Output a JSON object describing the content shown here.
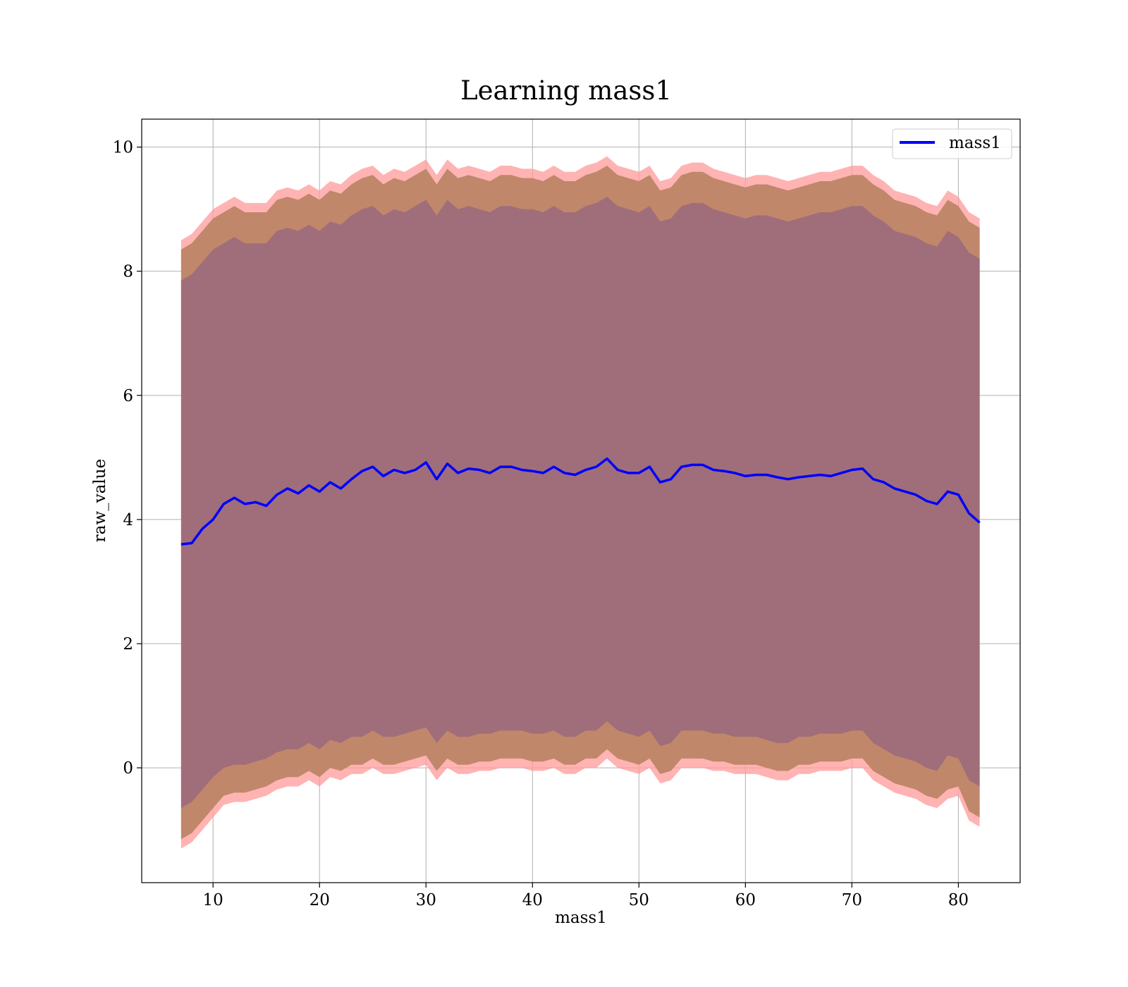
{
  "chart_data": {
    "type": "area",
    "title": "Learning mass1",
    "xlabel": "mass1",
    "ylabel": "raw_value",
    "xlim": [
      3.3,
      85.8
    ],
    "ylim": [
      -1.85,
      10.45
    ],
    "xticks": [
      10,
      20,
      30,
      40,
      50,
      60,
      70,
      80
    ],
    "yticks": [
      0,
      2,
      4,
      6,
      8,
      10
    ],
    "grid": true,
    "legend": {
      "position": "top-right",
      "entries": [
        "mass1"
      ]
    },
    "colors": {
      "line": "#0000ff",
      "band_outer": "#ff9999",
      "band_mid": "#c0876a",
      "band_inner": "#a06e7a",
      "grid": "#b0b0b0"
    },
    "x": [
      7.0,
      8.0,
      9.0,
      10.0,
      11.0,
      12.0,
      13.0,
      14.0,
      15.0,
      16.0,
      17.0,
      18.0,
      19.0,
      20.0,
      21.0,
      22.0,
      23.0,
      24.0,
      25.0,
      26.0,
      27.0,
      28.0,
      29.0,
      30.0,
      31.0,
      32.0,
      33.0,
      34.0,
      35.0,
      36.0,
      37.0,
      38.0,
      39.0,
      40.0,
      41.0,
      42.0,
      43.0,
      44.0,
      45.0,
      46.0,
      47.0,
      48.0,
      49.0,
      50.0,
      51.0,
      52.0,
      53.0,
      54.0,
      55.0,
      56.0,
      57.0,
      58.0,
      59.0,
      60.0,
      61.0,
      62.0,
      63.0,
      64.0,
      65.0,
      66.0,
      67.0,
      68.0,
      69.0,
      70.0,
      71.0,
      72.0,
      73.0,
      74.0,
      75.0,
      76.0,
      77.0,
      78.0,
      79.0,
      80.0,
      81.0,
      82.0
    ],
    "series": [
      {
        "name": "mass1",
        "values": [
          3.6,
          3.62,
          3.85,
          4.0,
          4.25,
          4.35,
          4.25,
          4.28,
          4.22,
          4.4,
          4.5,
          4.42,
          4.55,
          4.45,
          4.6,
          4.5,
          4.65,
          4.78,
          4.85,
          4.7,
          4.8,
          4.75,
          4.8,
          4.92,
          4.65,
          4.9,
          4.75,
          4.82,
          4.8,
          4.75,
          4.85,
          4.85,
          4.8,
          4.78,
          4.75,
          4.85,
          4.75,
          4.72,
          4.8,
          4.85,
          4.98,
          4.8,
          4.75,
          4.75,
          4.85,
          4.6,
          4.65,
          4.85,
          4.88,
          4.88,
          4.8,
          4.78,
          4.75,
          4.7,
          4.72,
          4.72,
          4.68,
          4.65,
          4.68,
          4.7,
          4.72,
          4.7,
          4.75,
          4.8,
          4.82,
          4.65,
          4.6,
          4.5,
          4.45,
          4.4,
          4.3,
          4.25,
          4.45,
          4.4,
          4.1,
          3.95
        ]
      }
    ],
    "bands": [
      {
        "lower": [
          -1.3,
          -1.2,
          -1.0,
          -0.8,
          -0.6,
          -0.55,
          -0.55,
          -0.5,
          -0.45,
          -0.35,
          -0.3,
          -0.3,
          -0.2,
          -0.3,
          -0.15,
          -0.2,
          -0.1,
          -0.1,
          0.0,
          -0.1,
          -0.1,
          -0.05,
          0.0,
          0.05,
          -0.2,
          0.0,
          -0.1,
          -0.1,
          -0.05,
          -0.05,
          0.0,
          0.0,
          0.0,
          -0.05,
          -0.05,
          0.0,
          -0.1,
          -0.1,
          0.0,
          0.0,
          0.15,
          0.0,
          -0.05,
          -0.1,
          0.0,
          -0.25,
          -0.2,
          0.0,
          0.0,
          0.0,
          -0.05,
          -0.05,
          -0.1,
          -0.1,
          -0.1,
          -0.15,
          -0.2,
          -0.2,
          -0.1,
          -0.1,
          -0.05,
          -0.05,
          -0.05,
          0.0,
          0.0,
          -0.2,
          -0.3,
          -0.4,
          -0.45,
          -0.5,
          -0.6,
          -0.65,
          -0.5,
          -0.45,
          -0.85,
          -0.95
        ],
        "upper": [
          8.5,
          8.6,
          8.8,
          9.0,
          9.1,
          9.2,
          9.1,
          9.1,
          9.1,
          9.3,
          9.35,
          9.3,
          9.4,
          9.3,
          9.45,
          9.4,
          9.55,
          9.65,
          9.7,
          9.55,
          9.65,
          9.6,
          9.7,
          9.8,
          9.55,
          9.8,
          9.65,
          9.7,
          9.65,
          9.6,
          9.7,
          9.7,
          9.65,
          9.65,
          9.6,
          9.7,
          9.6,
          9.6,
          9.7,
          9.75,
          9.85,
          9.7,
          9.65,
          9.6,
          9.7,
          9.45,
          9.5,
          9.7,
          9.75,
          9.75,
          9.65,
          9.6,
          9.55,
          9.5,
          9.55,
          9.55,
          9.5,
          9.45,
          9.5,
          9.55,
          9.6,
          9.6,
          9.65,
          9.7,
          9.7,
          9.55,
          9.45,
          9.3,
          9.25,
          9.2,
          9.1,
          9.05,
          9.3,
          9.2,
          8.95,
          8.85
        ]
      },
      {
        "lower": [
          -1.15,
          -1.05,
          -0.85,
          -0.65,
          -0.45,
          -0.4,
          -0.4,
          -0.35,
          -0.3,
          -0.2,
          -0.15,
          -0.15,
          -0.05,
          -0.15,
          0.0,
          -0.05,
          0.05,
          0.05,
          0.15,
          0.05,
          0.05,
          0.1,
          0.15,
          0.2,
          -0.05,
          0.15,
          0.05,
          0.05,
          0.1,
          0.1,
          0.15,
          0.15,
          0.15,
          0.1,
          0.1,
          0.15,
          0.05,
          0.05,
          0.15,
          0.15,
          0.3,
          0.15,
          0.1,
          0.05,
          0.15,
          -0.1,
          -0.05,
          0.15,
          0.15,
          0.15,
          0.1,
          0.1,
          0.05,
          0.05,
          0.05,
          0.0,
          -0.05,
          -0.05,
          0.05,
          0.05,
          0.1,
          0.1,
          0.1,
          0.15,
          0.15,
          -0.05,
          -0.15,
          -0.25,
          -0.3,
          -0.35,
          -0.45,
          -0.5,
          -0.35,
          -0.3,
          -0.7,
          -0.8
        ],
        "upper": [
          8.35,
          8.45,
          8.65,
          8.85,
          8.95,
          9.05,
          8.95,
          8.95,
          8.95,
          9.15,
          9.2,
          9.15,
          9.25,
          9.15,
          9.3,
          9.25,
          9.4,
          9.5,
          9.55,
          9.4,
          9.5,
          9.45,
          9.55,
          9.65,
          9.4,
          9.65,
          9.5,
          9.55,
          9.5,
          9.45,
          9.55,
          9.55,
          9.5,
          9.5,
          9.45,
          9.55,
          9.45,
          9.45,
          9.55,
          9.6,
          9.7,
          9.55,
          9.5,
          9.45,
          9.55,
          9.3,
          9.35,
          9.55,
          9.6,
          9.6,
          9.5,
          9.45,
          9.4,
          9.35,
          9.4,
          9.4,
          9.35,
          9.3,
          9.35,
          9.4,
          9.45,
          9.45,
          9.5,
          9.55,
          9.55,
          9.4,
          9.3,
          9.15,
          9.1,
          9.05,
          8.95,
          8.9,
          9.15,
          9.05,
          8.8,
          8.7
        ]
      },
      {
        "lower": [
          -0.65,
          -0.55,
          -0.35,
          -0.15,
          0.0,
          0.05,
          0.05,
          0.1,
          0.15,
          0.25,
          0.3,
          0.3,
          0.4,
          0.3,
          0.45,
          0.4,
          0.5,
          0.5,
          0.6,
          0.5,
          0.5,
          0.55,
          0.6,
          0.65,
          0.4,
          0.6,
          0.5,
          0.5,
          0.55,
          0.55,
          0.6,
          0.6,
          0.6,
          0.55,
          0.55,
          0.6,
          0.5,
          0.5,
          0.6,
          0.6,
          0.75,
          0.6,
          0.55,
          0.5,
          0.6,
          0.35,
          0.4,
          0.6,
          0.6,
          0.6,
          0.55,
          0.55,
          0.5,
          0.5,
          0.5,
          0.45,
          0.4,
          0.4,
          0.5,
          0.5,
          0.55,
          0.55,
          0.55,
          0.6,
          0.6,
          0.4,
          0.3,
          0.2,
          0.15,
          0.1,
          0.0,
          -0.05,
          0.2,
          0.15,
          -0.2,
          -0.3
        ],
        "upper": [
          7.85,
          7.95,
          8.15,
          8.35,
          8.45,
          8.55,
          8.45,
          8.45,
          8.45,
          8.65,
          8.7,
          8.65,
          8.75,
          8.65,
          8.8,
          8.75,
          8.9,
          9.0,
          9.05,
          8.9,
          9.0,
          8.95,
          9.05,
          9.15,
          8.9,
          9.15,
          9.0,
          9.05,
          9.0,
          8.95,
          9.05,
          9.05,
          9.0,
          9.0,
          8.95,
          9.05,
          8.95,
          8.95,
          9.05,
          9.1,
          9.2,
          9.05,
          9.0,
          8.95,
          9.05,
          8.8,
          8.85,
          9.05,
          9.1,
          9.1,
          9.0,
          8.95,
          8.9,
          8.85,
          8.9,
          8.9,
          8.85,
          8.8,
          8.85,
          8.9,
          8.95,
          8.95,
          9.0,
          9.05,
          9.05,
          8.9,
          8.8,
          8.65,
          8.6,
          8.55,
          8.45,
          8.4,
          8.65,
          8.55,
          8.3,
          8.2
        ]
      }
    ]
  }
}
